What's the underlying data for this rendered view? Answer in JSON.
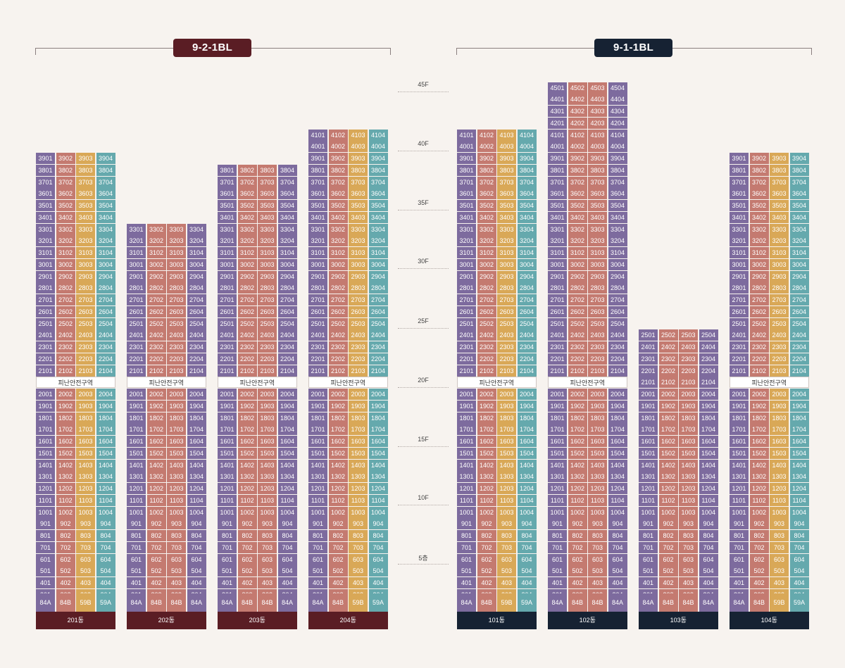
{
  "colors": {
    "A": "#7d6b9e",
    "B": "#c47a70",
    "C": "#d9a857",
    "D": "#65a9ad",
    "block_9_2": "#5a1d24",
    "block_9_1": "#162233",
    "refuge_bg": "#ffffff"
  },
  "blocks": [
    {
      "label": "9-2-1BL",
      "color_key": "block_9_2"
    },
    {
      "label": "9-1-1BL",
      "color_key": "block_9_1"
    }
  ],
  "floor_axis": [
    "45F",
    "40F",
    "35F",
    "30F",
    "25F",
    "20F",
    "15F",
    "10F",
    "5층"
  ],
  "refuge_label": "피난안전구역",
  "buildings": [
    {
      "name": "201동",
      "block": 0,
      "max_floor": 39,
      "refuge_after": 20,
      "col_colors": [
        "A",
        "B",
        "C",
        "D"
      ],
      "types": [
        "84A",
        "84B",
        "59B",
        "59A"
      ],
      "max_line": 4
    },
    {
      "name": "202동",
      "block": 0,
      "max_floor": 33,
      "refuge_after": 20,
      "col_colors": [
        "A",
        "B",
        "B",
        "A"
      ],
      "types": [
        "84A",
        "84B",
        "84B",
        "84A"
      ],
      "max_line": 4
    },
    {
      "name": "203동",
      "block": 0,
      "max_floor": 38,
      "refuge_after": 20,
      "col_colors": [
        "A",
        "B",
        "B",
        "A"
      ],
      "types": [
        "84A",
        "84B",
        "84B",
        "84A"
      ],
      "max_line": 4
    },
    {
      "name": "204동",
      "block": 0,
      "max_floor": 41,
      "refuge_after": 20,
      "col_colors": [
        "A",
        "B",
        "C",
        "D"
      ],
      "types": [
        "84A",
        "84B",
        "59B",
        "59A"
      ],
      "max_line": 4
    },
    {
      "name": "101동",
      "block": 1,
      "max_floor": 41,
      "refuge_after": 20,
      "col_colors": [
        "A",
        "B",
        "C",
        "D"
      ],
      "types": [
        "84A",
        "84B",
        "59B",
        "59A"
      ],
      "max_line": 4
    },
    {
      "name": "102동",
      "block": 1,
      "max_floor": 45,
      "refuge_after": 20,
      "col_colors": [
        "A",
        "B",
        "B",
        "A"
      ],
      "types": [
        "84A",
        "84B",
        "84B",
        "84A"
      ],
      "max_line": 4
    },
    {
      "name": "103동",
      "block": 1,
      "max_floor": 25,
      "refuge_after": null,
      "col_colors": [
        "A",
        "B",
        "B",
        "A"
      ],
      "types": [
        "84A",
        "84B",
        "84B",
        "84A"
      ],
      "max_line": 4
    },
    {
      "name": "104동",
      "block": 1,
      "max_floor": 39,
      "refuge_after": 20,
      "col_colors": [
        "A",
        "B",
        "C",
        "D"
      ],
      "types": [
        "84A",
        "84B",
        "59B",
        "59A"
      ],
      "max_line": 4
    }
  ]
}
